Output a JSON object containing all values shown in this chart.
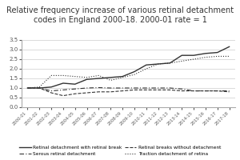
{
  "title": "Relative frequency increase of various retinal detachment\ncodes in England 2000-18. 2000-01 rate = 1",
  "years": [
    "2000-01",
    "2001-02",
    "2002-03",
    "2003-04",
    "2004-05",
    "2005-06",
    "2006-07",
    "2007-08",
    "2008-09",
    "2009-10",
    "2010-11",
    "2011-12",
    "2012-13",
    "2013-14",
    "2014-15",
    "2015-16",
    "2016-17",
    "2017-18"
  ],
  "retinal_detachment_break": [
    1.0,
    1.0,
    1.05,
    1.25,
    1.2,
    1.45,
    1.5,
    1.55,
    1.6,
    1.85,
    2.2,
    2.25,
    2.3,
    2.7,
    2.7,
    2.8,
    2.85,
    3.15
  ],
  "serous_retinal": [
    1.0,
    1.0,
    0.85,
    0.9,
    0.95,
    1.0,
    1.02,
    1.0,
    1.0,
    1.0,
    1.0,
    1.0,
    1.0,
    0.95,
    0.85,
    0.85,
    0.85,
    0.85
  ],
  "retinal_breaks_without": [
    1.0,
    1.0,
    0.75,
    0.6,
    0.7,
    0.75,
    0.8,
    0.8,
    0.85,
    0.9,
    0.9,
    0.9,
    0.9,
    0.85,
    0.85,
    0.85,
    0.85,
    0.8
  ],
  "traction_detachment": [
    1.0,
    1.05,
    1.65,
    1.65,
    1.6,
    1.55,
    1.65,
    1.4,
    1.55,
    1.7,
    2.0,
    2.25,
    2.3,
    2.4,
    2.5,
    2.6,
    2.65,
    2.65
  ],
  "ylim": [
    0,
    3.5
  ],
  "yticks": [
    0,
    0.5,
    1.0,
    1.5,
    2.0,
    2.5,
    3.0,
    3.5
  ],
  "line_color": "#333333",
  "title_fontsize": 7.0
}
